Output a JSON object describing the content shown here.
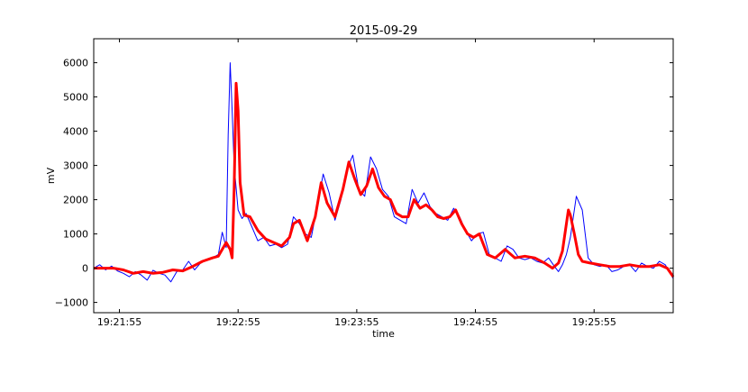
{
  "chart_data": {
    "type": "line",
    "title": "2015-09-29",
    "xlabel": "time",
    "ylabel": "mV",
    "ylim": [
      -1300,
      6700
    ],
    "yticks": [
      -1000,
      0,
      1000,
      2000,
      3000,
      4000,
      5000,
      6000
    ],
    "ytick_labels": [
      "−1000",
      "0",
      "1000",
      "2000",
      "3000",
      "4000",
      "5000",
      "6000"
    ],
    "xlim": [
      -13,
      280
    ],
    "xticks": [
      0,
      60,
      120,
      180,
      240
    ],
    "xtick_labels": [
      "19:21:55",
      "19:22:55",
      "19:23:55",
      "19:24:55",
      "19:25:55"
    ],
    "grid": false,
    "series": [
      {
        "color": "#0000ff",
        "x": [
          -13,
          -10,
          -7,
          -4,
          -1,
          2,
          5,
          8,
          11,
          14,
          17,
          20,
          23,
          26,
          29,
          32,
          35,
          38,
          41,
          44,
          47,
          50,
          52,
          54,
          55,
          56,
          57,
          58,
          60,
          62,
          64,
          67,
          70,
          73,
          76,
          79,
          82,
          85,
          88,
          91,
          94,
          97,
          100,
          103,
          106,
          109,
          112,
          115,
          118,
          121,
          124,
          127,
          130,
          133,
          136,
          139,
          142,
          145,
          148,
          151,
          154,
          157,
          160,
          163,
          166,
          169,
          172,
          175,
          178,
          181,
          184,
          187,
          190,
          193,
          196,
          199,
          202,
          205,
          208,
          211,
          214,
          217,
          220,
          222,
          224,
          226,
          228,
          231,
          234,
          237,
          240,
          243,
          246,
          249,
          252,
          255,
          258,
          261,
          264,
          267,
          270,
          273,
          276,
          280
        ],
        "y": [
          0,
          100,
          -50,
          60,
          -80,
          -150,
          -250,
          -100,
          -200,
          -350,
          -60,
          -150,
          -200,
          -400,
          -100,
          -50,
          200,
          -50,
          150,
          250,
          300,
          400,
          1050,
          600,
          3900,
          6000,
          4600,
          3000,
          1700,
          1450,
          1600,
          1200,
          800,
          900,
          650,
          700,
          600,
          700,
          1500,
          1300,
          1000,
          900,
          1800,
          2750,
          2200,
          1400,
          2000,
          2900,
          3300,
          2300,
          2100,
          3250,
          2900,
          2300,
          2100,
          1500,
          1400,
          1300,
          2300,
          1900,
          2200,
          1800,
          1600,
          1500,
          1400,
          1750,
          1500,
          1100,
          800,
          1000,
          1050,
          400,
          300,
          200,
          650,
          550,
          300,
          250,
          300,
          200,
          150,
          300,
          50,
          -100,
          100,
          400,
          900,
          2100,
          1700,
          300,
          100,
          50,
          100,
          -100,
          -50,
          50,
          100,
          -100,
          150,
          50,
          0,
          200,
          100,
          -300
        ]
      },
      {
        "color": "#ff0000",
        "x": [
          -13,
          -8,
          -3,
          2,
          7,
          12,
          17,
          22,
          27,
          32,
          37,
          42,
          47,
          50,
          52,
          54,
          56,
          57,
          58,
          59,
          60,
          61,
          63,
          66,
          70,
          74,
          78,
          82,
          86,
          88,
          91,
          95,
          99,
          102,
          105,
          109,
          113,
          116,
          119,
          122,
          125,
          128,
          131,
          134,
          137,
          140,
          143,
          146,
          149,
          152,
          155,
          158,
          161,
          164,
          167,
          170,
          173,
          176,
          179,
          182,
          186,
          190,
          195,
          200,
          205,
          210,
          215,
          219,
          222,
          224,
          226,
          227,
          228,
          230,
          232,
          234,
          238,
          243,
          248,
          253,
          258,
          263,
          268,
          273,
          277,
          280
        ],
        "y": [
          0,
          0,
          0,
          -50,
          -150,
          -100,
          -150,
          -120,
          -50,
          -80,
          50,
          200,
          300,
          350,
          550,
          750,
          550,
          300,
          2300,
          5400,
          4600,
          2500,
          1550,
          1500,
          1100,
          850,
          750,
          650,
          900,
          1300,
          1400,
          800,
          1500,
          2500,
          1900,
          1500,
          2300,
          3100,
          2600,
          2150,
          2400,
          2900,
          2350,
          2100,
          2000,
          1600,
          1500,
          1500,
          2000,
          1750,
          1850,
          1700,
          1500,
          1450,
          1500,
          1700,
          1300,
          1000,
          900,
          1000,
          400,
          300,
          550,
          300,
          350,
          300,
          150,
          0,
          150,
          500,
          1300,
          1700,
          1550,
          1000,
          400,
          200,
          150,
          100,
          50,
          50,
          100,
          50,
          50,
          100,
          0,
          -250
        ]
      }
    ]
  }
}
